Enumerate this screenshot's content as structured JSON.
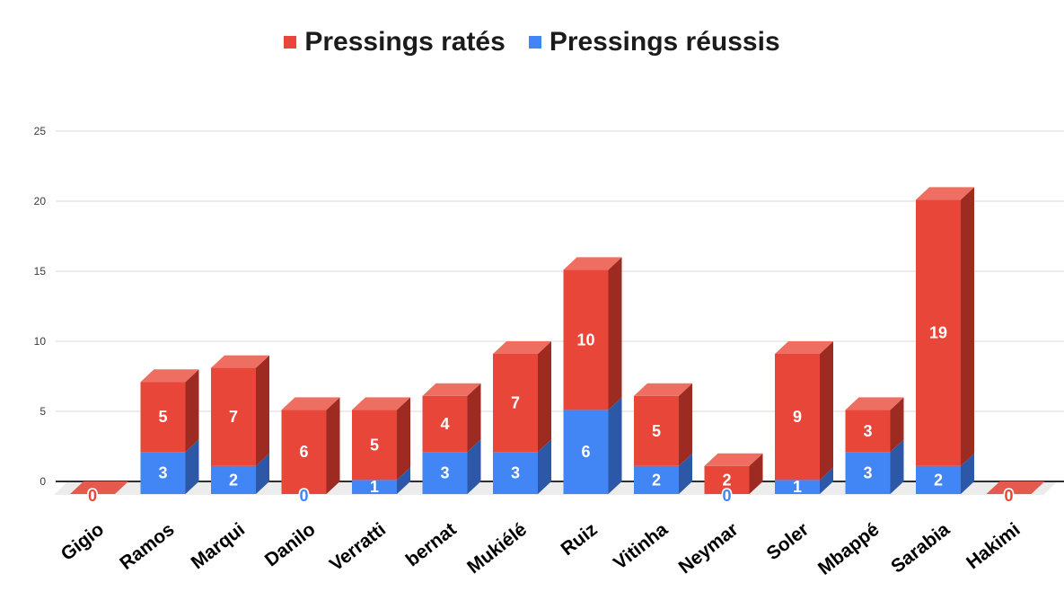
{
  "chart_data": {
    "type": "bar",
    "variant": "3d-stacked-column",
    "stacked": true,
    "title": "",
    "categories": [
      "Gigio",
      "Ramos",
      "Marqui",
      "Danilo",
      "Verratti",
      "bernat",
      "Mukiélé",
      "Ruiz",
      "Vitinha",
      "Neymar",
      "Soler",
      "Mbappé",
      "Sarabia",
      "Hakimi"
    ],
    "series": [
      {
        "name": "Pressings ratés",
        "color": "#e9463a",
        "color_side": "#9e2b22",
        "color_top": "#ee6e61",
        "color_flat_zero": "#e45a4e",
        "values": [
          0,
          5,
          7,
          6,
          5,
          4,
          7,
          10,
          5,
          2,
          9,
          3,
          19,
          0
        ]
      },
      {
        "name": "Pressings réussis",
        "color": "#4285f4",
        "color_side": "#2d58a7",
        "color_top": "#6ba0f7",
        "values": [
          0,
          3,
          2,
          0,
          1,
          3,
          3,
          6,
          2,
          0,
          1,
          3,
          2,
          0
        ]
      }
    ],
    "stack_order_bottom_to_top": [
      "Pressings réussis",
      "Pressings ratés"
    ],
    "totals": [
      0,
      8,
      9,
      6,
      6,
      7,
      10,
      16,
      7,
      2,
      10,
      6,
      21,
      0
    ],
    "yticks": [
      0,
      5,
      10,
      15,
      20,
      25
    ],
    "ylim": [
      0,
      25
    ],
    "grid": true,
    "legend_position": "top-center",
    "data_labels": "white inside segments; zero values shown as colored 0 with white outline at baseline",
    "colors": {
      "background": "#ffffff",
      "gridline": "#dadada",
      "axis_line": "#2e2e2e",
      "floor": "#ececec",
      "y_tick_text": "#3a3a3a",
      "x_label_text": "#000000",
      "legend_text": "#1b1b1b",
      "bar_label_text": "#ffffff"
    }
  }
}
